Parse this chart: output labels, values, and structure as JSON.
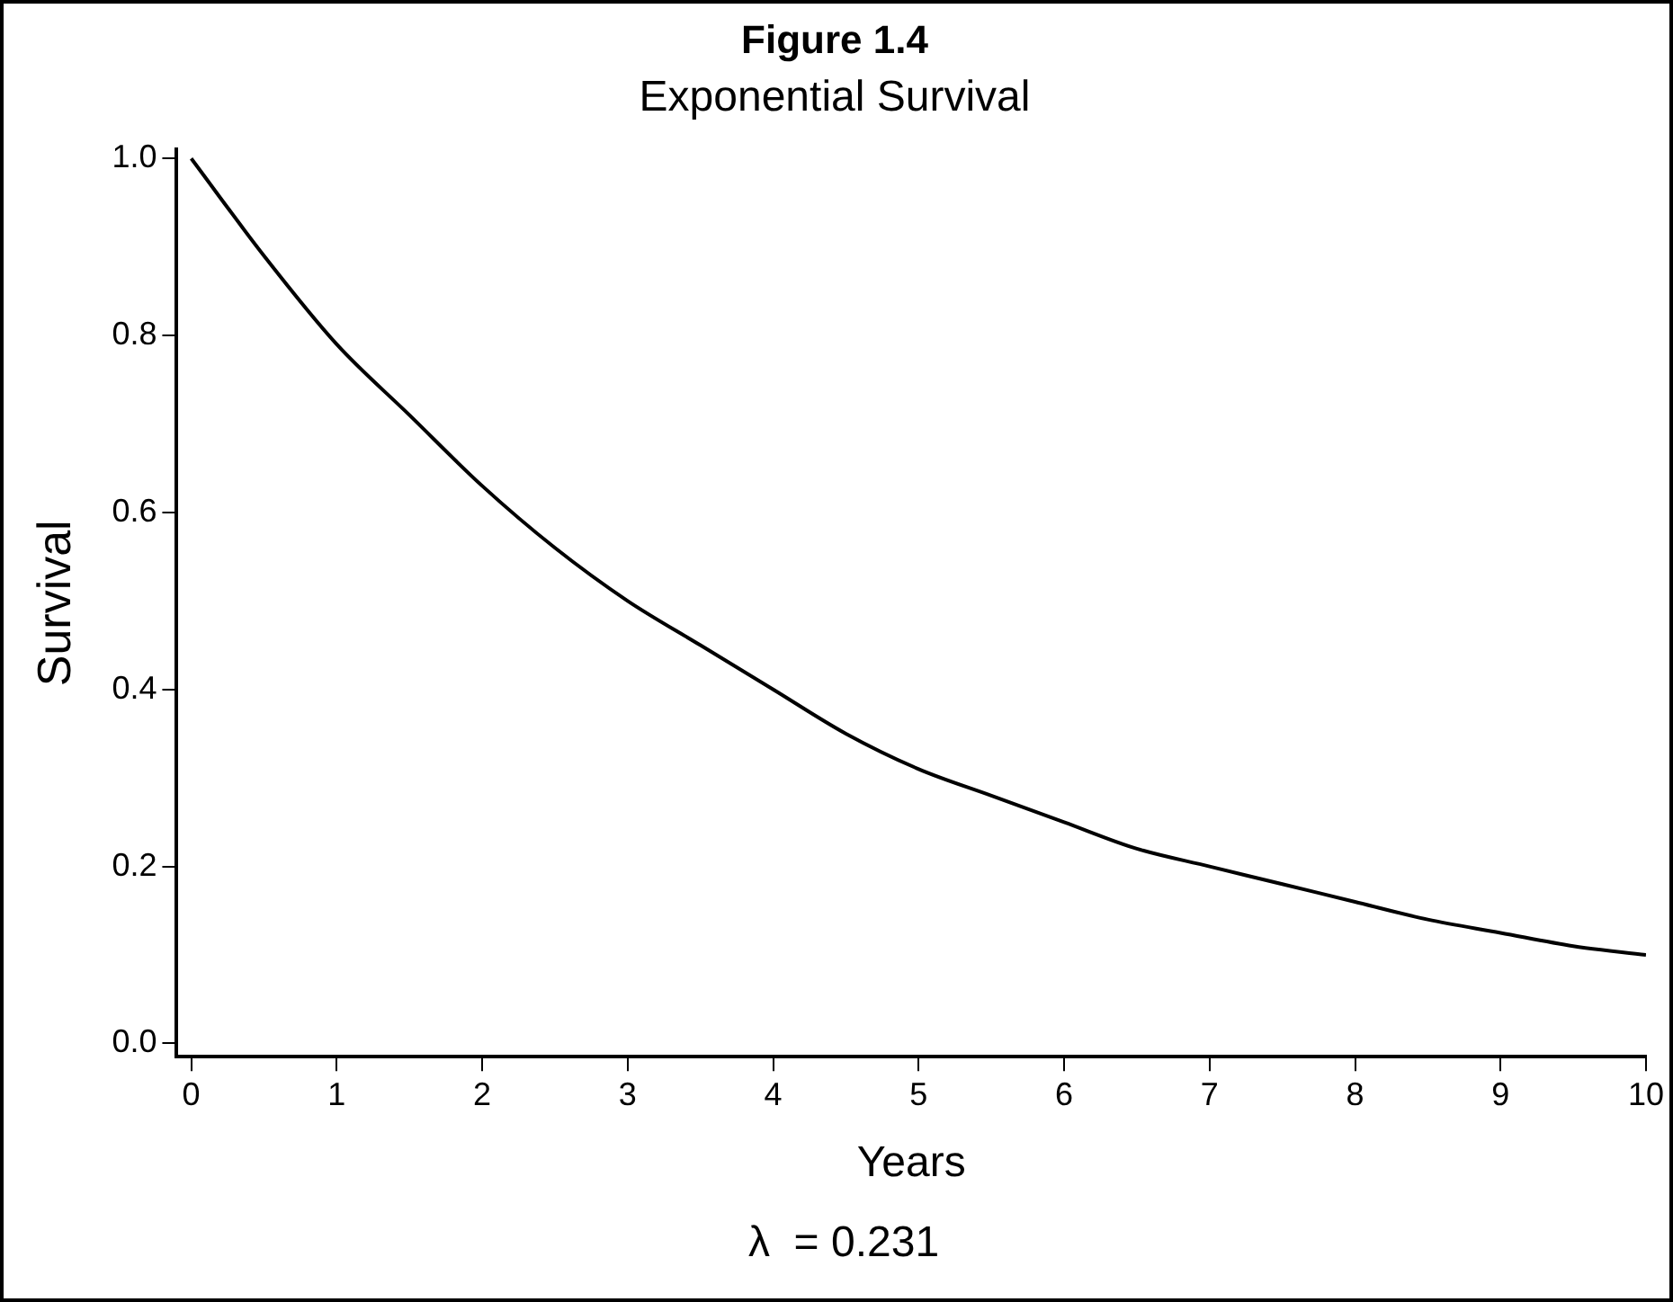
{
  "chart_data": {
    "type": "line",
    "title": "Figure 1.4",
    "subtitle": "Exponential Survival",
    "xlabel": "Years",
    "ylabel": "Survival",
    "annotations": [
      "λ  = 0.231"
    ],
    "x": [
      0,
      0.5,
      1,
      1.5,
      2,
      2.5,
      3,
      3.5,
      4,
      4.5,
      5,
      5.5,
      6,
      6.5,
      7,
      7.5,
      8,
      8.5,
      9,
      9.5,
      10
    ],
    "values": [
      1.0,
      0.89,
      0.79,
      0.71,
      0.63,
      0.56,
      0.5,
      0.45,
      0.4,
      0.35,
      0.31,
      0.28,
      0.25,
      0.22,
      0.2,
      0.18,
      0.16,
      0.14,
      0.125,
      0.11,
      0.1
    ],
    "color": "#000000",
    "xlim": [
      -0.1,
      10
    ],
    "ylim": [
      -0.015,
      1.01
    ],
    "xticks": [
      0,
      1,
      2,
      3,
      4,
      5,
      6,
      7,
      8,
      9,
      10
    ],
    "yticks": [
      {
        "value": 0,
        "label": "0.0"
      },
      0.2,
      0.4,
      0.6,
      0.8,
      {
        "value": 1,
        "label": "1.0"
      }
    ],
    "grid": false,
    "legend": false,
    "marker": "none",
    "line_style": "solid"
  }
}
